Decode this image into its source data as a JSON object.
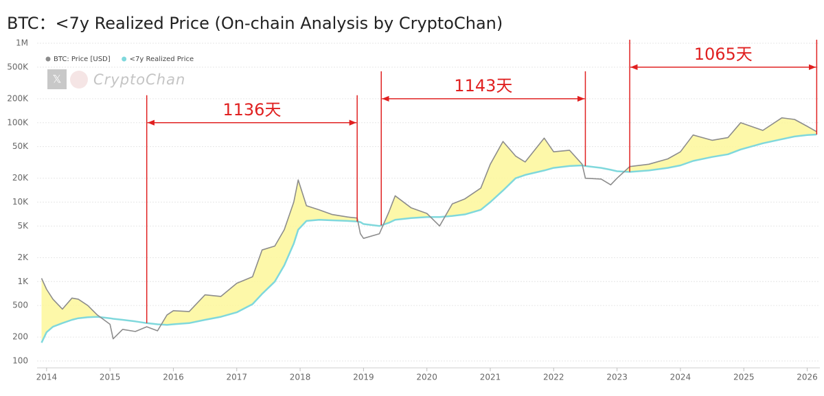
{
  "chart_data": {
    "type": "line",
    "title": "BTC：<7y Realized Price (On-chain Analysis by CryptoChan)",
    "watermark": "CryptoChan",
    "log_y": true,
    "grid": true,
    "legend": "top-left",
    "xlim": [
      2013.85,
      2026.2
    ],
    "xticks": [
      2014,
      2015,
      2016,
      2017,
      2018,
      2019,
      2020,
      2021,
      2022,
      2023,
      2024,
      2025,
      2026
    ],
    "ylim": [
      100,
      1000000
    ],
    "yticks": [
      100,
      200,
      500,
      {
        "value": 1000,
        "label": "1K"
      },
      {
        "value": 2000,
        "label": "2K"
      },
      {
        "value": 5000,
        "label": "5K"
      },
      {
        "value": 10000,
        "label": "10K"
      },
      {
        "value": 20000,
        "label": "20K"
      },
      {
        "value": 50000,
        "label": "50K"
      },
      {
        "value": 100000,
        "label": "100K"
      },
      {
        "value": 200000,
        "label": "200K"
      },
      {
        "value": 500000,
        "label": "500K"
      },
      {
        "value": 1000000,
        "label": "1M"
      }
    ],
    "x": [
      2013.92,
      2014.0,
      2014.1,
      2014.25,
      2014.4,
      2014.5,
      2014.65,
      2014.8,
      2015.0,
      2015.05,
      2015.2,
      2015.4,
      2015.58,
      2015.75,
      2015.9,
      2016.0,
      2016.25,
      2016.5,
      2016.75,
      2017.0,
      2017.25,
      2017.4,
      2017.6,
      2017.75,
      2017.9,
      2017.97,
      2018.1,
      2018.3,
      2018.5,
      2018.75,
      2018.9,
      2018.95,
      2019.0,
      2019.25,
      2019.4,
      2019.5,
      2019.75,
      2020.0,
      2020.2,
      2020.4,
      2020.6,
      2020.85,
      2021.0,
      2021.2,
      2021.4,
      2021.55,
      2021.85,
      2022.0,
      2022.25,
      2022.45,
      2022.5,
      2022.75,
      2022.9,
      2023.0,
      2023.2,
      2023.5,
      2023.8,
      2024.0,
      2024.2,
      2024.5,
      2024.75,
      2024.95,
      2025.3,
      2025.6,
      2025.8,
      2026.0,
      2026.15
    ],
    "series": [
      {
        "name": "BTC: Price [USD]",
        "color": "#8c8c8c",
        "values": [
          1100,
          800,
          600,
          450,
          620,
          600,
          500,
          380,
          290,
          190,
          250,
          235,
          270,
          240,
          380,
          430,
          420,
          680,
          650,
          950,
          1150,
          2500,
          2800,
          4500,
          10000,
          19000,
          9000,
          8000,
          7000,
          6500,
          6300,
          4000,
          3500,
          4000,
          7500,
          12000,
          8500,
          7200,
          5000,
          9500,
          11000,
          15000,
          30000,
          58000,
          38000,
          32000,
          64000,
          43000,
          45000,
          30000,
          20000,
          19500,
          16500,
          20000,
          28000,
          30000,
          35000,
          43000,
          70000,
          60000,
          65000,
          100000,
          80000,
          115000,
          110000,
          90000,
          77000
        ]
      },
      {
        "name": "<7y Realized Price",
        "color": "#7fd8dc",
        "values": [
          170,
          230,
          270,
          300,
          330,
          345,
          355,
          360,
          345,
          340,
          330,
          315,
          300,
          290,
          285,
          290,
          300,
          330,
          360,
          410,
          520,
          700,
          1000,
          1600,
          3000,
          4500,
          5800,
          6000,
          5900,
          5800,
          5700,
          5600,
          5300,
          5000,
          5500,
          6000,
          6300,
          6500,
          6500,
          6700,
          7000,
          8000,
          10000,
          14000,
          20000,
          22000,
          25000,
          27000,
          28500,
          29000,
          28500,
          27000,
          25500,
          24500,
          24000,
          25000,
          27000,
          29000,
          33000,
          37000,
          40000,
          46000,
          55000,
          62000,
          67000,
          70000,
          71000
        ]
      }
    ],
    "annotations": [
      {
        "text": "1136天",
        "x_start": 2015.58,
        "x_end": 2018.9,
        "y": 100000
      },
      {
        "text": "1143天",
        "x_start": 2019.28,
        "x_end": 2022.5,
        "y": 200000
      },
      {
        "text": "1065天",
        "x_start": 2023.2,
        "x_end": 2026.15,
        "y": 500000
      }
    ]
  }
}
